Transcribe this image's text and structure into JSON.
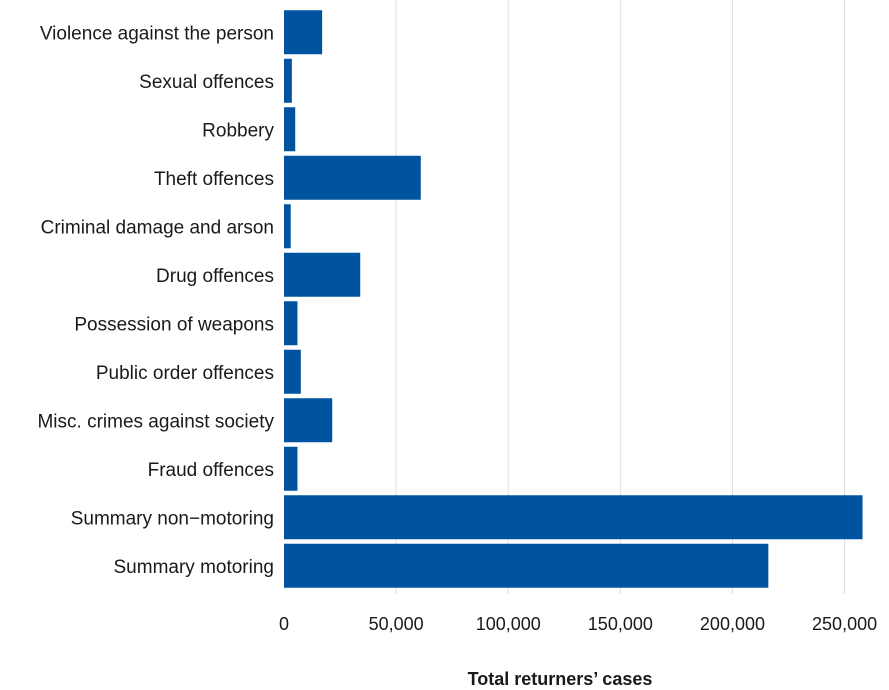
{
  "chart_data": {
    "type": "bar",
    "orientation": "horizontal",
    "categories": [
      "Violence against the person",
      "Sexual offences",
      "Robbery",
      "Theft offences",
      "Criminal damage and arson",
      "Drug offences",
      "Possession of weapons",
      "Public order offences",
      "Misc. crimes against society",
      "Fraud offences",
      "Summary non−motoring",
      "Summary motoring"
    ],
    "values": [
      17000,
      3500,
      5000,
      61000,
      3000,
      34000,
      6000,
      7500,
      21500,
      6000,
      258000,
      216000
    ],
    "title": "",
    "xlabel": "Total returners’ cases",
    "ylabel": "",
    "xlim": [
      0,
      260000
    ],
    "xticks": [
      0,
      50000,
      100000,
      150000,
      200000,
      250000
    ],
    "xtick_labels": [
      "0",
      "50,000",
      "100,000",
      "150,000",
      "200,000",
      "250,000"
    ],
    "bar_color": "#00539f",
    "grid": "vertical",
    "legend": "none"
  }
}
